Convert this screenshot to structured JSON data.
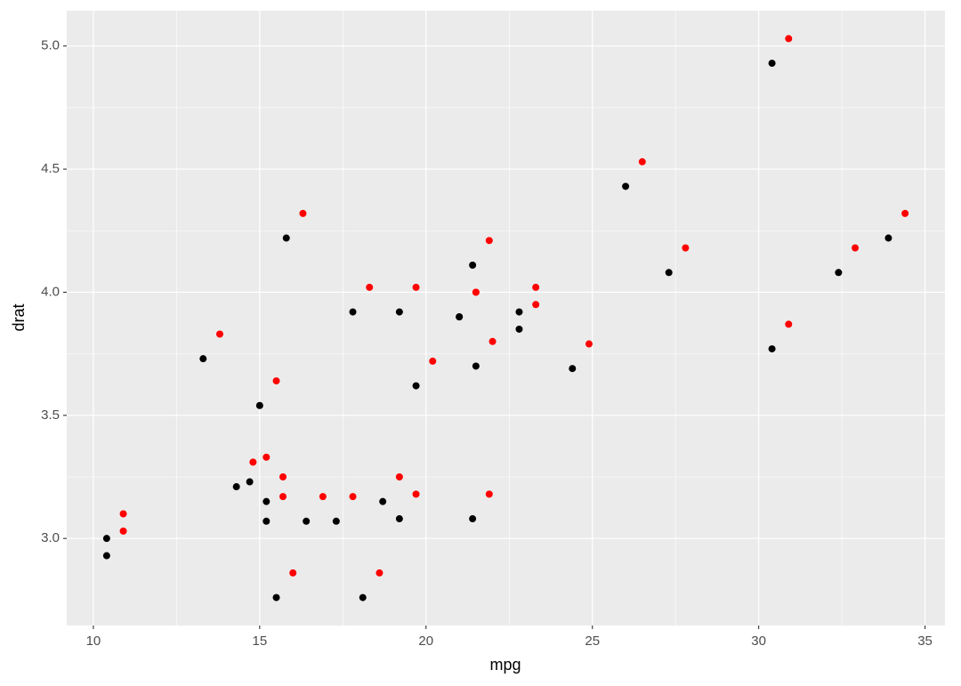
{
  "chart_data": {
    "type": "scatter",
    "x_label": "mpg",
    "y_label": "drat",
    "xlim": [
      9.2,
      35.6
    ],
    "ylim": [
      2.6465,
      5.1435
    ],
    "xticks": [
      10,
      15,
      20,
      25,
      30,
      35
    ],
    "yticks": [
      {
        "value": 3.0,
        "label": "3.0"
      },
      3.5,
      {
        "value": 4.0,
        "label": "4.0"
      },
      4.5,
      {
        "value": 5.0,
        "label": "5.0"
      }
    ],
    "grid": true,
    "series": [
      {
        "color": "#000000",
        "x": [
          21.0,
          21.0,
          22.8,
          21.4,
          18.7,
          18.1,
          14.3,
          24.4,
          22.8,
          19.2,
          17.8,
          16.4,
          17.3,
          15.2,
          10.4,
          10.4,
          14.7,
          32.4,
          30.4,
          33.9,
          21.5,
          15.5,
          15.2,
          13.3,
          19.2,
          27.3,
          26.0,
          30.4,
          15.8,
          19.7,
          15.0,
          21.4
        ],
        "values": [
          3.9,
          3.9,
          3.85,
          3.08,
          3.15,
          2.76,
          3.21,
          3.69,
          3.92,
          3.92,
          3.92,
          3.07,
          3.07,
          3.07,
          2.93,
          3.0,
          3.23,
          4.08,
          4.93,
          4.22,
          3.7,
          2.76,
          3.15,
          3.73,
          3.08,
          4.08,
          4.43,
          3.77,
          4.22,
          3.62,
          3.54,
          4.11
        ]
      },
      {
        "color": "#ff0000",
        "x": [
          21.5,
          21.5,
          23.3,
          21.9,
          19.2,
          18.6,
          14.8,
          24.9,
          23.3,
          19.7,
          18.3,
          16.9,
          17.8,
          15.7,
          10.9,
          10.9,
          15.2,
          32.9,
          30.9,
          34.4,
          22.0,
          16.0,
          15.7,
          13.8,
          19.7,
          27.8,
          26.5,
          30.9,
          16.3,
          20.2,
          15.5,
          21.9
        ],
        "values": [
          4.0,
          4.0,
          3.95,
          3.18,
          3.25,
          2.86,
          3.31,
          3.79,
          4.02,
          4.02,
          4.02,
          3.17,
          3.17,
          3.17,
          3.03,
          3.1,
          3.33,
          4.18,
          5.03,
          4.32,
          3.8,
          2.86,
          3.25,
          3.83,
          3.18,
          4.18,
          4.53,
          3.87,
          4.32,
          3.72,
          3.64,
          4.21
        ]
      }
    ]
  }
}
